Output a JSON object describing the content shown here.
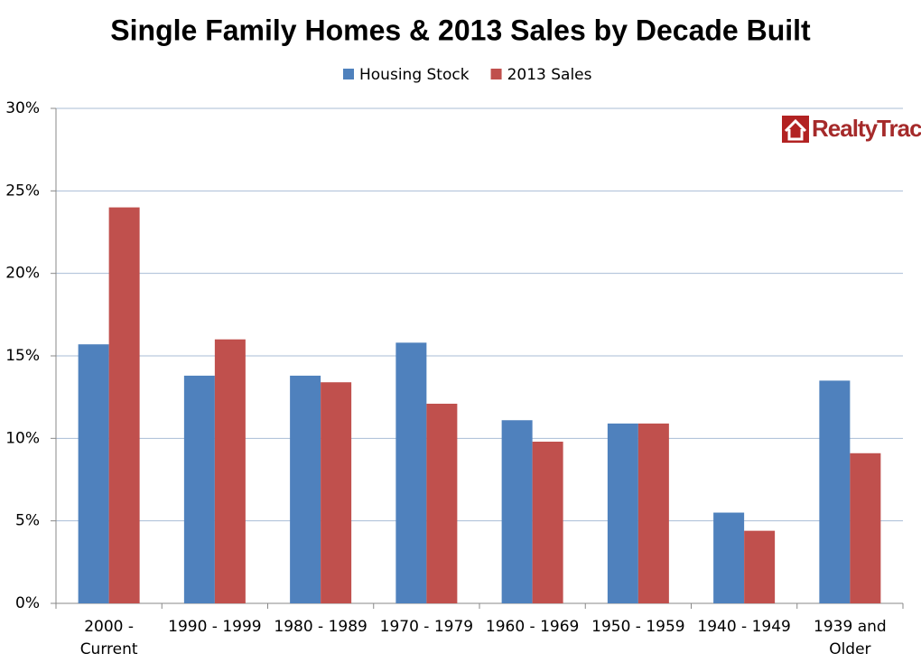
{
  "chart_data": {
    "type": "bar",
    "title": "Single Family Homes & 2013 Sales by Decade Built",
    "logo": "RealtyTrac",
    "categories": [
      "2000 - Current",
      "1990 - 1999",
      "1980 - 1989",
      "1970 - 1979",
      "1960 - 1969",
      "1950 - 1959",
      "1940 - 1949",
      "1939 and Older"
    ],
    "series": [
      {
        "name": "Housing Stock",
        "color": "#4f81bd",
        "values": [
          15.7,
          13.8,
          13.8,
          15.8,
          11.1,
          10.9,
          5.5,
          13.5
        ]
      },
      {
        "name": "2013 Sales",
        "color": "#c0504d",
        "values": [
          24.0,
          16.0,
          13.4,
          12.1,
          9.8,
          10.9,
          4.4,
          9.1
        ]
      }
    ],
    "ylim": [
      0,
      30
    ],
    "yticks": [
      {
        "value": 0,
        "label": "0%"
      },
      {
        "value": 5,
        "label": "5%"
      },
      {
        "value": 10,
        "label": "10%"
      },
      {
        "value": 15,
        "label": "15%"
      },
      {
        "value": 20,
        "label": "20%"
      },
      {
        "value": 25,
        "label": "25%"
      },
      {
        "value": 30,
        "label": "30%"
      }
    ],
    "grid": true,
    "legend": "top"
  }
}
